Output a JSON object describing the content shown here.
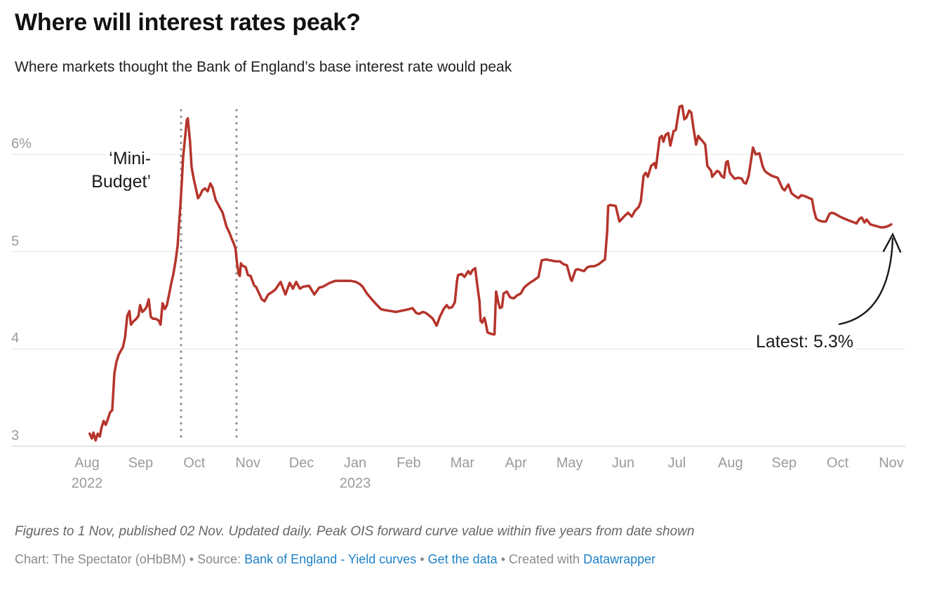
{
  "header": {
    "title": "Where will interest rates peak?",
    "subtitle": "Where markets thought the Bank of England’s base interest rate would peak"
  },
  "chart_data": {
    "type": "line",
    "title": "Where will interest rates peak?",
    "subtitle": "Where markets thought the Bank of England’s base interest rate would peak",
    "x_unit": "months since 1 Aug 2022 (0 = Aug 2022, 15 = Nov 2023)",
    "y_unit": "percent",
    "ylim": [
      2.85,
      6.55
    ],
    "grid": "horizontal",
    "legend": "none",
    "y_ticks": [
      {
        "v": 3,
        "label": "3"
      },
      {
        "v": 4,
        "label": "4"
      },
      {
        "v": 5,
        "label": "5"
      },
      {
        "v": 6,
        "label": "6%"
      }
    ],
    "x_ticks": [
      {
        "t": 0,
        "label": "Aug",
        "sub": "2022"
      },
      {
        "t": 1,
        "label": "Sep"
      },
      {
        "t": 2,
        "label": "Oct"
      },
      {
        "t": 3,
        "label": "Nov"
      },
      {
        "t": 4,
        "label": "Dec"
      },
      {
        "t": 5,
        "label": "Jan",
        "sub": "2023"
      },
      {
        "t": 6,
        "label": "Feb"
      },
      {
        "t": 7,
        "label": "Mar"
      },
      {
        "t": 8,
        "label": "Apr"
      },
      {
        "t": 9,
        "label": "May"
      },
      {
        "t": 10,
        "label": "Jun"
      },
      {
        "t": 11,
        "label": "Jul"
      },
      {
        "t": 12,
        "label": "Aug"
      },
      {
        "t": 13,
        "label": "Sep"
      },
      {
        "t": 14,
        "label": "Oct"
      },
      {
        "t": 15,
        "label": "Nov"
      }
    ],
    "event_lines": [
      {
        "t": 1.754,
        "meaning": "dotted-marker-1"
      },
      {
        "t": 2.788,
        "meaning": "dotted-marker-2"
      }
    ],
    "annotations": {
      "mini_budget": {
        "line1": "‘Mini-",
        "line2": "Budget’"
      },
      "latest": "Latest: 5.3%"
    },
    "series": [
      {
        "name": "Peak OIS forward curve value",
        "color": "#b5342b",
        "points": [
          [
            0.05,
            3.13
          ],
          [
            0.09,
            3.08
          ],
          [
            0.12,
            3.14
          ],
          [
            0.16,
            3.06
          ],
          [
            0.2,
            3.13
          ],
          [
            0.24,
            3.1
          ],
          [
            0.27,
            3.19
          ],
          [
            0.31,
            3.26
          ],
          [
            0.35,
            3.22
          ],
          [
            0.39,
            3.28
          ],
          [
            0.43,
            3.35
          ],
          [
            0.47,
            3.37
          ],
          [
            0.51,
            3.75
          ],
          [
            0.55,
            3.87
          ],
          [
            0.59,
            3.94
          ],
          [
            0.63,
            3.98
          ],
          [
            0.67,
            4.02
          ],
          [
            0.71,
            4.12
          ],
          [
            0.75,
            4.34
          ],
          [
            0.79,
            4.39
          ],
          [
            0.82,
            4.25
          ],
          [
            0.86,
            4.28
          ],
          [
            0.92,
            4.31
          ],
          [
            0.96,
            4.34
          ],
          [
            0.99,
            4.45
          ],
          [
            1.03,
            4.38
          ],
          [
            1.07,
            4.4
          ],
          [
            1.11,
            4.43
          ],
          [
            1.15,
            4.51
          ],
          [
            1.19,
            4.33
          ],
          [
            1.23,
            4.31
          ],
          [
            1.28,
            4.31
          ],
          [
            1.34,
            4.29
          ],
          [
            1.37,
            4.25
          ],
          [
            1.41,
            4.47
          ],
          [
            1.45,
            4.41
          ],
          [
            1.49,
            4.45
          ],
          [
            1.53,
            4.56
          ],
          [
            1.57,
            4.67
          ],
          [
            1.61,
            4.77
          ],
          [
            1.65,
            4.9
          ],
          [
            1.69,
            5.06
          ],
          [
            1.71,
            5.23
          ],
          [
            1.74,
            5.46
          ],
          [
            1.77,
            5.73
          ],
          [
            1.79,
            5.96
          ],
          [
            1.82,
            6.12
          ],
          [
            1.86,
            6.35
          ],
          [
            1.88,
            6.37
          ],
          [
            1.92,
            6.14
          ],
          [
            1.95,
            5.87
          ],
          [
            1.99,
            5.75
          ],
          [
            2.03,
            5.65
          ],
          [
            2.07,
            5.55
          ],
          [
            2.11,
            5.58
          ],
          [
            2.15,
            5.63
          ],
          [
            2.2,
            5.65
          ],
          [
            2.25,
            5.62
          ],
          [
            2.3,
            5.7
          ],
          [
            2.34,
            5.66
          ],
          [
            2.4,
            5.53
          ],
          [
            2.43,
            5.5
          ],
          [
            2.47,
            5.46
          ],
          [
            2.53,
            5.4
          ],
          [
            2.57,
            5.32
          ],
          [
            2.6,
            5.26
          ],
          [
            2.66,
            5.19
          ],
          [
            2.7,
            5.13
          ],
          [
            2.74,
            5.08
          ],
          [
            2.77,
            5.03
          ],
          [
            2.8,
            4.87
          ],
          [
            2.83,
            4.77
          ],
          [
            2.85,
            4.75
          ],
          [
            2.87,
            4.88
          ],
          [
            2.89,
            4.86
          ],
          [
            2.96,
            4.84
          ],
          [
            3.0,
            4.76
          ],
          [
            3.05,
            4.75
          ],
          [
            3.12,
            4.65
          ],
          [
            3.15,
            4.64
          ],
          [
            3.26,
            4.51
          ],
          [
            3.31,
            4.49
          ],
          [
            3.38,
            4.56
          ],
          [
            3.44,
            4.58
          ],
          [
            3.51,
            4.61
          ],
          [
            3.61,
            4.69
          ],
          [
            3.7,
            4.56
          ],
          [
            3.78,
            4.68
          ],
          [
            3.84,
            4.62
          ],
          [
            3.9,
            4.69
          ],
          [
            3.97,
            4.62
          ],
          [
            4.03,
            4.64
          ],
          [
            4.14,
            4.65
          ],
          [
            4.24,
            4.56
          ],
          [
            4.33,
            4.63
          ],
          [
            4.4,
            4.64
          ],
          [
            4.53,
            4.68
          ],
          [
            4.63,
            4.7
          ],
          [
            4.79,
            4.7
          ],
          [
            4.92,
            4.7
          ],
          [
            5.01,
            4.69
          ],
          [
            5.08,
            4.67
          ],
          [
            5.14,
            4.64
          ],
          [
            5.22,
            4.57
          ],
          [
            5.31,
            4.51
          ],
          [
            5.41,
            4.45
          ],
          [
            5.48,
            4.41
          ],
          [
            5.55,
            4.4
          ],
          [
            5.67,
            4.39
          ],
          [
            5.75,
            4.38
          ],
          [
            5.84,
            4.39
          ],
          [
            5.93,
            4.4
          ],
          [
            6.01,
            4.41
          ],
          [
            6.07,
            4.42
          ],
          [
            6.14,
            4.37
          ],
          [
            6.19,
            4.36
          ],
          [
            6.26,
            4.38
          ],
          [
            6.32,
            4.37
          ],
          [
            6.39,
            4.34
          ],
          [
            6.45,
            4.31
          ],
          [
            6.49,
            4.27
          ],
          [
            6.52,
            4.24
          ],
          [
            6.58,
            4.33
          ],
          [
            6.65,
            4.41
          ],
          [
            6.71,
            4.45
          ],
          [
            6.75,
            4.42
          ],
          [
            6.81,
            4.43
          ],
          [
            6.86,
            4.48
          ],
          [
            6.9,
            4.7
          ],
          [
            6.92,
            4.76
          ],
          [
            6.99,
            4.77
          ],
          [
            7.04,
            4.74
          ],
          [
            7.11,
            4.8
          ],
          [
            7.15,
            4.77
          ],
          [
            7.19,
            4.81
          ],
          [
            7.24,
            4.83
          ],
          [
            7.28,
            4.65
          ],
          [
            7.32,
            4.49
          ],
          [
            7.34,
            4.29
          ],
          [
            7.37,
            4.27
          ],
          [
            7.41,
            4.32
          ],
          [
            7.43,
            4.28
          ],
          [
            7.47,
            4.17
          ],
          [
            7.51,
            4.16
          ],
          [
            7.57,
            4.15
          ],
          [
            7.6,
            4.15
          ],
          [
            7.63,
            4.59
          ],
          [
            7.67,
            4.48
          ],
          [
            7.7,
            4.42
          ],
          [
            7.74,
            4.43
          ],
          [
            7.77,
            4.57
          ],
          [
            7.83,
            4.59
          ],
          [
            7.89,
            4.53
          ],
          [
            7.96,
            4.52
          ],
          [
            8.02,
            4.55
          ],
          [
            8.09,
            4.57
          ],
          [
            8.15,
            4.63
          ],
          [
            8.19,
            4.65
          ],
          [
            8.26,
            4.68
          ],
          [
            8.32,
            4.7
          ],
          [
            8.42,
            4.74
          ],
          [
            8.48,
            4.91
          ],
          [
            8.56,
            4.92
          ],
          [
            8.65,
            4.91
          ],
          [
            8.74,
            4.9
          ],
          [
            8.82,
            4.9
          ],
          [
            8.89,
            4.87
          ],
          [
            8.95,
            4.86
          ],
          [
            9.02,
            4.72
          ],
          [
            9.04,
            4.7
          ],
          [
            9.11,
            4.81
          ],
          [
            9.15,
            4.82
          ],
          [
            9.21,
            4.81
          ],
          [
            9.27,
            4.8
          ],
          [
            9.33,
            4.84
          ],
          [
            9.4,
            4.85
          ],
          [
            9.46,
            4.85
          ],
          [
            9.54,
            4.87
          ],
          [
            9.61,
            4.9
          ],
          [
            9.66,
            4.92
          ],
          [
            9.7,
            5.2
          ],
          [
            9.72,
            5.47
          ],
          [
            9.76,
            5.48
          ],
          [
            9.86,
            5.47
          ],
          [
            9.92,
            5.33
          ],
          [
            9.93,
            5.31
          ],
          [
            10.03,
            5.37
          ],
          [
            10.09,
            5.4
          ],
          [
            10.16,
            5.36
          ],
          [
            10.22,
            5.42
          ],
          [
            10.29,
            5.46
          ],
          [
            10.33,
            5.52
          ],
          [
            10.38,
            5.78
          ],
          [
            10.42,
            5.81
          ],
          [
            10.46,
            5.77
          ],
          [
            10.52,
            5.88
          ],
          [
            10.58,
            5.91
          ],
          [
            10.61,
            5.86
          ],
          [
            10.68,
            6.17
          ],
          [
            10.72,
            6.19
          ],
          [
            10.75,
            6.13
          ],
          [
            10.79,
            6.2
          ],
          [
            10.84,
            6.22
          ],
          [
            10.88,
            6.09
          ],
          [
            10.94,
            6.24
          ],
          [
            10.98,
            6.25
          ],
          [
            11.05,
            6.49
          ],
          [
            11.1,
            6.5
          ],
          [
            11.14,
            6.36
          ],
          [
            11.18,
            6.38
          ],
          [
            11.23,
            6.45
          ],
          [
            11.27,
            6.43
          ],
          [
            11.31,
            6.27
          ],
          [
            11.36,
            6.1
          ],
          [
            11.4,
            6.19
          ],
          [
            11.44,
            6.16
          ],
          [
            11.49,
            6.13
          ],
          [
            11.53,
            6.1
          ],
          [
            11.57,
            5.88
          ],
          [
            11.64,
            5.83
          ],
          [
            11.66,
            5.77
          ],
          [
            11.75,
            5.83
          ],
          [
            11.79,
            5.82
          ],
          [
            11.83,
            5.78
          ],
          [
            11.88,
            5.76
          ],
          [
            11.92,
            5.92
          ],
          [
            11.95,
            5.93
          ],
          [
            11.99,
            5.81
          ],
          [
            12.03,
            5.78
          ],
          [
            12.08,
            5.75
          ],
          [
            12.15,
            5.76
          ],
          [
            12.21,
            5.75
          ],
          [
            12.25,
            5.71
          ],
          [
            12.29,
            5.7
          ],
          [
            12.34,
            5.78
          ],
          [
            12.42,
            6.07
          ],
          [
            12.47,
            6.0
          ],
          [
            12.54,
            6.01
          ],
          [
            12.6,
            5.88
          ],
          [
            12.64,
            5.83
          ],
          [
            12.68,
            5.81
          ],
          [
            12.77,
            5.78
          ],
          [
            12.88,
            5.76
          ],
          [
            12.97,
            5.65
          ],
          [
            13.01,
            5.63
          ],
          [
            13.08,
            5.69
          ],
          [
            13.14,
            5.6
          ],
          [
            13.21,
            5.57
          ],
          [
            13.27,
            5.55
          ],
          [
            13.32,
            5.58
          ],
          [
            13.39,
            5.57
          ],
          [
            13.47,
            5.55
          ],
          [
            13.52,
            5.54
          ],
          [
            13.56,
            5.42
          ],
          [
            13.6,
            5.34
          ],
          [
            13.65,
            5.32
          ],
          [
            13.72,
            5.31
          ],
          [
            13.78,
            5.31
          ],
          [
            13.85,
            5.39
          ],
          [
            13.89,
            5.4
          ],
          [
            13.95,
            5.39
          ],
          [
            14.04,
            5.36
          ],
          [
            14.12,
            5.34
          ],
          [
            14.21,
            5.32
          ],
          [
            14.31,
            5.3
          ],
          [
            14.35,
            5.29
          ],
          [
            14.41,
            5.34
          ],
          [
            14.45,
            5.35
          ],
          [
            14.5,
            5.3
          ],
          [
            14.54,
            5.33
          ],
          [
            14.61,
            5.28
          ],
          [
            14.67,
            5.27
          ],
          [
            14.74,
            5.26
          ],
          [
            14.8,
            5.25
          ],
          [
            14.86,
            5.25
          ],
          [
            14.93,
            5.26
          ],
          [
            15.0,
            5.28
          ]
        ]
      }
    ]
  },
  "colors": {
    "line": "#b5342b",
    "grid": "#e4e4e4",
    "grid_baseline": "#c8c8c8",
    "event_line": "#8f8f8f",
    "axis_text": "#9b9b9b",
    "annotation_text": "#1a1a1a",
    "link_blue": "#1d81c8",
    "footer_text": "#8a8a8a"
  },
  "footer": {
    "note": "Figures to 1 Nov, published 02 Nov. Updated daily. Peak OIS forward curve value within five years from date shown",
    "byline_prefix": "Chart: The Spectator (oHbBM)",
    "sep": "•",
    "source_label": "Source:",
    "source_link": "Bank of England - Yield curves",
    "data_link": "Get the data",
    "created_with": "Created with",
    "tool_link": "Datawrapper"
  }
}
